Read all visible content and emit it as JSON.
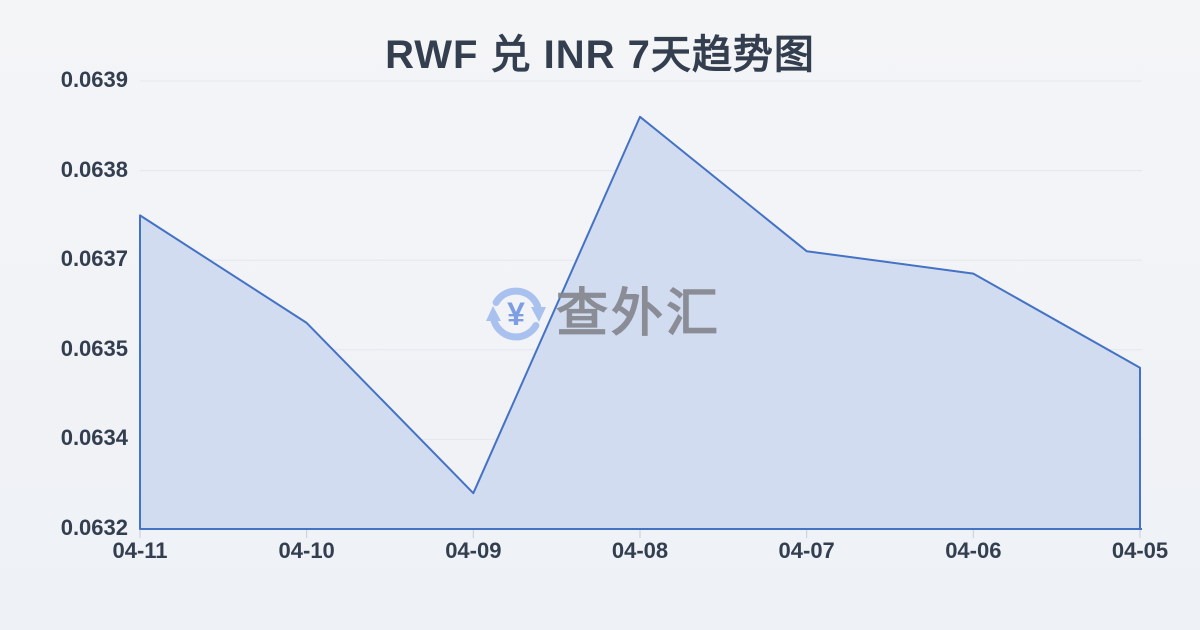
{
  "chart": {
    "title": "RWF 兑 INR 7天趋势图"
  },
  "watermark": {
    "text": "查外汇",
    "symbol": "¥",
    "icon": "currency-exchange-icon"
  },
  "colors": {
    "line": "#4472c4",
    "fill": "#d2dcf1",
    "grid": "#e4e7ed",
    "axis_tick": "#c9ced6",
    "text": "#333e4f",
    "background_top": "#f4f5f7",
    "background_bottom": "#eef1f6",
    "watermark_text": "#84878e",
    "watermark_icon": "#a9c1ee",
    "watermark_symbol": "#7d9ee2"
  },
  "chart_data": {
    "type": "area",
    "title": "RWF 兑 INR 7天趋势图",
    "categories": [
      "04-11",
      "04-10",
      "04-09",
      "04-08",
      "04-07",
      "04-06",
      "04-05"
    ],
    "values": [
      0.06375,
      0.06356,
      0.06328,
      0.06386,
      0.06371,
      0.06367,
      0.06348
    ],
    "y_tick_labels_top_to_bottom": [
      "0.0639",
      "0.0638",
      "0.0637",
      "0.0635",
      "0.0634",
      "0.0632"
    ],
    "ylim": [
      0.0632,
      0.0639
    ],
    "xlabel": "",
    "ylabel": "",
    "grid": true,
    "legend_position": "none"
  }
}
